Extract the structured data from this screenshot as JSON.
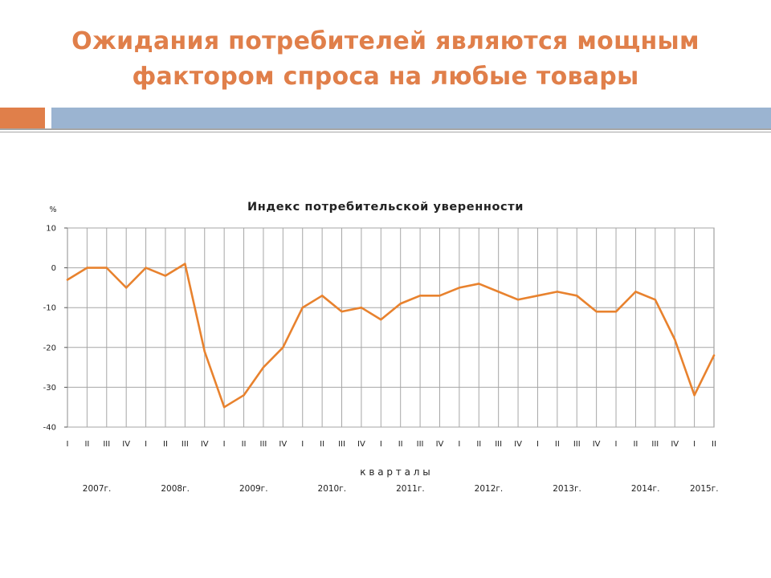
{
  "slide": {
    "title_line1": "Ожидания потребителей являются мощным",
    "title_line2": "фактором спроса на любые товары"
  },
  "colors": {
    "title": "#e07f4a",
    "accent_bar": "#e07f4a",
    "main_bar": "#9bb4d1",
    "series_line": "#e8822e",
    "grid": "#a6a6a6"
  },
  "chart_data": {
    "type": "line",
    "title": "Индекс потребительской уверенности",
    "ylabel": "%",
    "xlabel": "к в а р т а л ы",
    "ylim": [
      -40,
      10
    ],
    "yticks": [
      10,
      0,
      -10,
      -20,
      -30,
      -40
    ],
    "grid": true,
    "categories": [
      "I",
      "II",
      "III",
      "IV",
      "I",
      "II",
      "III",
      "IV",
      "I",
      "II",
      "III",
      "IV",
      "I",
      "II",
      "III",
      "IV",
      "I",
      "II",
      "III",
      "IV",
      "I",
      "II",
      "III",
      "IV",
      "I",
      "II",
      "III",
      "IV",
      "I",
      "II",
      "III",
      "IV",
      "I",
      "II"
    ],
    "year_labels": [
      {
        "label": "2007г.",
        "start": 0,
        "span": 4
      },
      {
        "label": "2008г.",
        "start": 4,
        "span": 4
      },
      {
        "label": "2009г.",
        "start": 8,
        "span": 4
      },
      {
        "label": "2010г.",
        "start": 12,
        "span": 4
      },
      {
        "label": "2011г.",
        "start": 16,
        "span": 4
      },
      {
        "label": "2012г.",
        "start": 20,
        "span": 4
      },
      {
        "label": "2013г.",
        "start": 24,
        "span": 4
      },
      {
        "label": "2014г.",
        "start": 28,
        "span": 4
      },
      {
        "label": "2015г.",
        "start": 32,
        "span": 2
      }
    ],
    "series": [
      {
        "values": [
          -3,
          0,
          0,
          -5,
          0,
          -2,
          1,
          -21,
          -35,
          -32,
          -25,
          -20,
          -10,
          -7,
          -11,
          -10,
          -13,
          -9,
          -7,
          -7,
          -5,
          -4,
          -6,
          -8,
          -7,
          -6,
          -7,
          -11,
          -11,
          -6,
          -8,
          -18,
          -32,
          -22
        ]
      }
    ]
  }
}
